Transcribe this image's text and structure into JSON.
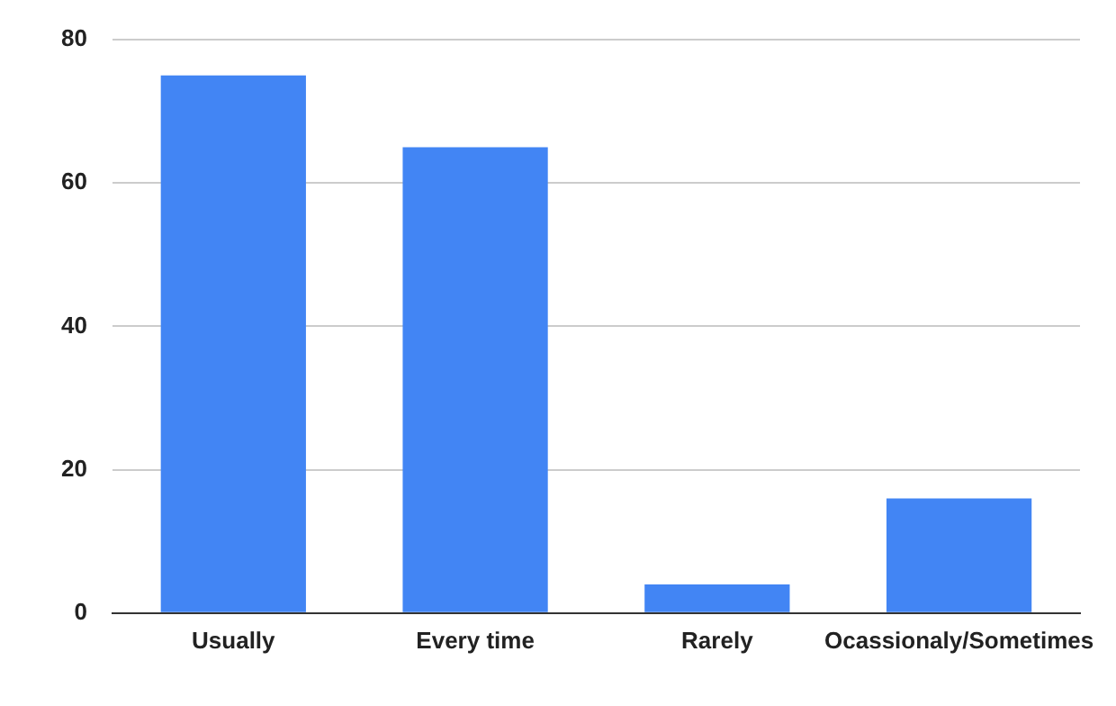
{
  "chart_data": {
    "type": "bar",
    "categories": [
      "Usually",
      "Every time",
      "Rarely",
      "Ocassionaly/Sometimes"
    ],
    "values": [
      75,
      65,
      4,
      16
    ],
    "color": "#4285f4",
    "ylim": [
      0,
      80
    ],
    "yticks": [
      0,
      20,
      40,
      60,
      80
    ],
    "grid": "y"
  }
}
